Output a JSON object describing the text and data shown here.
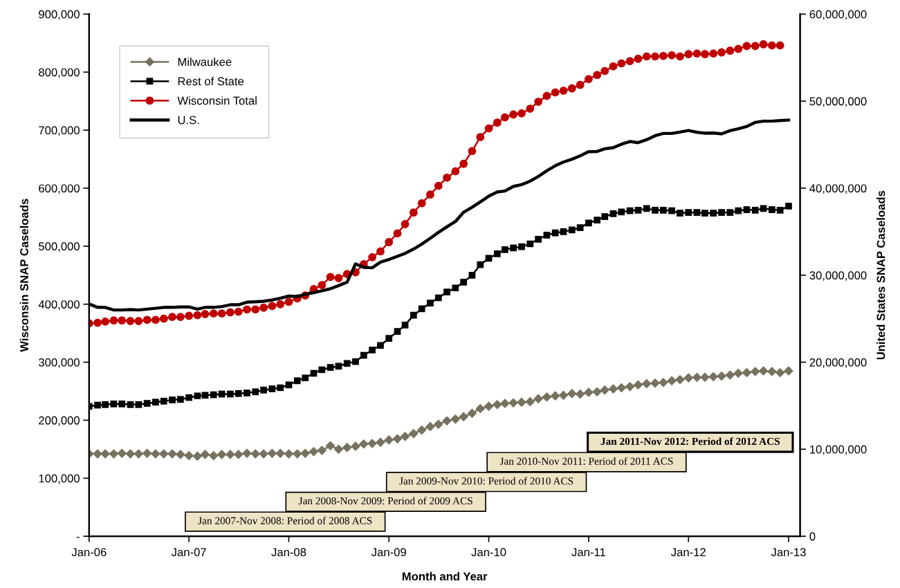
{
  "chart_data": {
    "type": "line",
    "xlabel": "Month and Year",
    "ylabel": "Wisconsin SNAP Caseloads",
    "y2label": "United States SNAP Caseloads",
    "x": [
      "2006-01",
      "2006-02",
      "2006-03",
      "2006-04",
      "2006-05",
      "2006-06",
      "2006-07",
      "2006-08",
      "2006-09",
      "2006-10",
      "2006-11",
      "2006-12",
      "2007-01",
      "2007-02",
      "2007-03",
      "2007-04",
      "2007-05",
      "2007-06",
      "2007-07",
      "2007-08",
      "2007-09",
      "2007-10",
      "2007-11",
      "2007-12",
      "2008-01",
      "2008-02",
      "2008-03",
      "2008-04",
      "2008-05",
      "2008-06",
      "2008-07",
      "2008-08",
      "2008-09",
      "2008-10",
      "2008-11",
      "2008-12",
      "2009-01",
      "2009-02",
      "2009-03",
      "2009-04",
      "2009-05",
      "2009-06",
      "2009-07",
      "2009-08",
      "2009-09",
      "2009-10",
      "2009-11",
      "2009-12",
      "2010-01",
      "2010-02",
      "2010-03",
      "2010-04",
      "2010-05",
      "2010-06",
      "2010-07",
      "2010-08",
      "2010-09",
      "2010-10",
      "2010-11",
      "2010-12",
      "2011-01",
      "2011-02",
      "2011-03",
      "2011-04",
      "2011-05",
      "2011-06",
      "2011-07",
      "2011-08",
      "2011-09",
      "2011-10",
      "2011-11",
      "2011-12",
      "2012-01",
      "2012-02",
      "2012-03",
      "2012-04",
      "2012-05",
      "2012-06",
      "2012-07",
      "2012-08",
      "2012-09",
      "2012-10",
      "2012-11",
      "2012-12",
      "2013-01"
    ],
    "series": [
      {
        "name": "Milwaukee",
        "color": "#77725f",
        "marker": "diamond",
        "values": [
          142000,
          142000,
          142000,
          142000,
          143000,
          142000,
          142000,
          143000,
          142000,
          142000,
          142000,
          141000,
          139000,
          138000,
          141000,
          139000,
          141000,
          141000,
          141000,
          143000,
          142000,
          142000,
          143000,
          143000,
          142000,
          142000,
          143000,
          146000,
          148000,
          156000,
          150000,
          153000,
          155000,
          159000,
          160000,
          162000,
          166000,
          168000,
          172000,
          177000,
          183000,
          189000,
          193000,
          199000,
          202000,
          206000,
          212000,
          220000,
          224000,
          227000,
          229000,
          230000,
          231000,
          232000,
          237000,
          240000,
          242000,
          243000,
          246000,
          245000,
          248000,
          249000,
          252000,
          254000,
          256000,
          258000,
          261000,
          263000,
          264000,
          265000,
          268000,
          270000,
          273000,
          274000,
          274000,
          275000,
          276000,
          278000,
          281000,
          282000,
          284000,
          285000,
          284000,
          282000,
          285000
        ]
      },
      {
        "name": "Rest of State",
        "color": "#000000",
        "marker": "square",
        "values": [
          224000,
          226000,
          227000,
          228000,
          228000,
          227000,
          227000,
          229000,
          231000,
          233000,
          235000,
          236000,
          239000,
          242000,
          243000,
          244000,
          245000,
          245000,
          246000,
          247000,
          249000,
          252000,
          254000,
          256000,
          261000,
          268000,
          273000,
          281000,
          287000,
          291000,
          293000,
          298000,
          301000,
          312000,
          321000,
          329000,
          341000,
          353000,
          364000,
          381000,
          392000,
          402000,
          411000,
          421000,
          428000,
          438000,
          450000,
          468000,
          479000,
          487000,
          494000,
          497000,
          499000,
          504000,
          512000,
          519000,
          523000,
          525000,
          528000,
          532000,
          540000,
          545000,
          551000,
          556000,
          559000,
          561000,
          562000,
          565000,
          562000,
          562000,
          561000,
          557000,
          558000,
          558000,
          557000,
          557000,
          558000,
          558000,
          561000,
          563000,
          562000,
          565000,
          563000,
          562000,
          569000
        ]
      },
      {
        "name": "Wisconsin Total",
        "color": "#c00000",
        "marker": "circle",
        "values": [
          367000,
          368000,
          370000,
          372000,
          372000,
          371000,
          371000,
          373000,
          373000,
          375000,
          378000,
          378000,
          380000,
          381000,
          383000,
          384000,
          384000,
          386000,
          387000,
          391000,
          391000,
          394000,
          397000,
          400000,
          404000,
          410000,
          415000,
          426000,
          433000,
          447000,
          445000,
          452000,
          455000,
          469000,
          481000,
          491000,
          507000,
          522000,
          538000,
          558000,
          574000,
          589000,
          604000,
          618000,
          629000,
          642000,
          664000,
          688000,
          703000,
          713000,
          722000,
          727000,
          729000,
          737000,
          749000,
          759000,
          765000,
          768000,
          772000,
          778000,
          788000,
          795000,
          802000,
          810000,
          815000,
          819000,
          823000,
          827000,
          827000,
          828000,
          829000,
          827000,
          831000,
          832000,
          831000,
          832000,
          834000,
          837000,
          840000,
          845000,
          845000,
          848000,
          846000,
          846000,
          null
        ]
      },
      {
        "name": "U.S.",
        "color": "#000000",
        "marker": "none",
        "axis": "y2",
        "values": [
          26700000,
          26300000,
          26300000,
          26000000,
          26000000,
          26050000,
          26000000,
          26100000,
          26200000,
          26300000,
          26300000,
          26350000,
          26350000,
          26100000,
          26300000,
          26300000,
          26400000,
          26600000,
          26600000,
          26900000,
          26950000,
          27000000,
          27150000,
          27350000,
          27600000,
          27550000,
          27800000,
          28000000,
          28200000,
          28450000,
          28800000,
          29200000,
          31300000,
          30900000,
          30850000,
          31500000,
          31800000,
          32170000,
          32500000,
          33000000,
          33570000,
          34240000,
          34920000,
          35560000,
          36170000,
          37230000,
          37810000,
          38420000,
          39080000,
          39560000,
          39670000,
          40200000,
          40410000,
          40800000,
          41340000,
          42000000,
          42580000,
          43000000,
          43320000,
          43720000,
          44200000,
          44220000,
          44520000,
          44650000,
          45050000,
          45360000,
          45230000,
          45570000,
          46030000,
          46290000,
          46290000,
          46450000,
          46630000,
          46420000,
          46320000,
          46340000,
          46240000,
          46610000,
          46820000,
          47090000,
          47560000,
          47700000,
          47700000,
          47770000,
          47830000
        ]
      }
    ],
    "xlim": [
      "2006-01-01",
      "2013-02-12"
    ],
    "xticks": [
      {
        "value": "2006-01-01",
        "label": "Jan-06"
      },
      {
        "value": "2007-01-01",
        "label": "Jan-07"
      },
      {
        "value": "2008-01-01",
        "label": "Jan-08"
      },
      {
        "value": "2009-01-01",
        "label": "Jan-09"
      },
      {
        "value": "2010-01-01",
        "label": "Jan-10"
      },
      {
        "value": "2011-01-01",
        "label": "Jan-11"
      },
      {
        "value": "2012-01-01",
        "label": "Jan-12"
      },
      {
        "value": "2013-01-01",
        "label": "Jan-13"
      }
    ],
    "ylim": [
      0,
      900000
    ],
    "yticks": [
      {
        "value": 0,
        "label": "-"
      },
      {
        "value": 100000,
        "label": "100,000"
      },
      {
        "value": 200000,
        "label": "200,000"
      },
      {
        "value": 300000,
        "label": "300,000"
      },
      {
        "value": 400000,
        "label": "400,000"
      },
      {
        "value": 500000,
        "label": "500,000"
      },
      {
        "value": 600000,
        "label": "600,000"
      },
      {
        "value": 700000,
        "label": "700,000"
      },
      {
        "value": 800000,
        "label": "800,000"
      },
      {
        "value": 900000,
        "label": "900,000"
      }
    ],
    "y2lim": [
      0,
      60000000
    ],
    "y2ticks": [
      0,
      {
        "value": 10000000,
        "label": "10,000,000"
      },
      {
        "value": 20000000,
        "label": "20,000,000"
      },
      {
        "value": 30000000,
        "label": "30,000,000"
      },
      {
        "value": 40000000,
        "label": "40,000,000"
      },
      {
        "value": 50000000,
        "label": "50,000,000"
      },
      {
        "value": 60000000,
        "label": "60,000,000"
      }
    ],
    "annotations": [
      "Jan 2007-Nov 2008: Period of 2008 ACS",
      "Jan 2008-Nov 2009: Period of 2009 ACS",
      "Jan 2009-Nov 2010: Period of 2010 ACS",
      "Jan 2010-Nov 2011: Period of 2011 ACS",
      "Jan 2011-Nov 2012: Period of 2012 ACS"
    ],
    "grid": false,
    "legend": "top left"
  }
}
